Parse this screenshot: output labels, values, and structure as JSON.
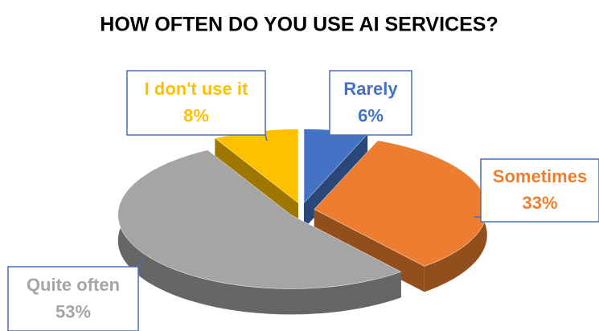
{
  "chart_data": {
    "type": "pie",
    "title": "HOW OFTEN DO YOU USE AI SERVICES?",
    "categories": [
      "Rarely",
      "Sometimes",
      "Quite often",
      "I don't use it"
    ],
    "values": [
      6,
      33,
      53,
      8
    ],
    "value_labels": [
      "6%",
      "33%",
      "53%",
      "8%"
    ],
    "colors": [
      "#4472c4",
      "#ed7d31",
      "#a5a5a5",
      "#ffc000"
    ]
  }
}
